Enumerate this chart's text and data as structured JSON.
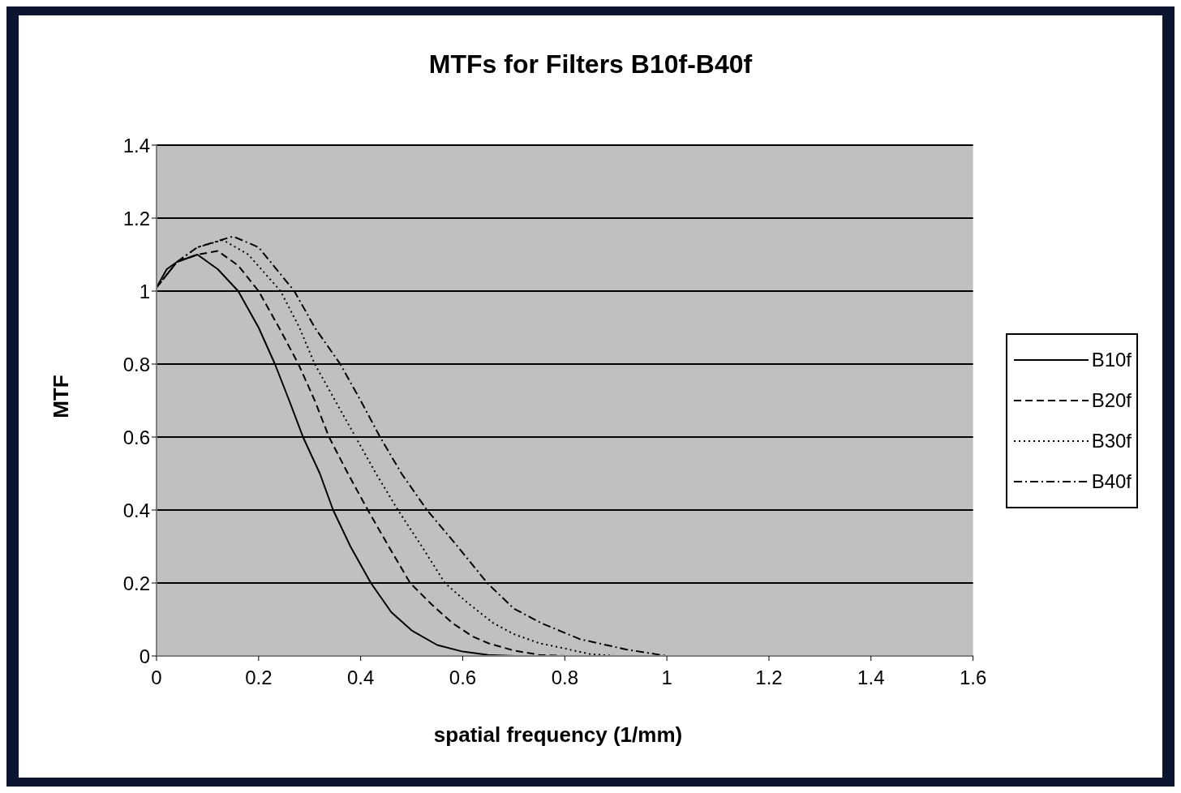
{
  "chart_data": {
    "type": "line",
    "title": "MTFs for Filters B10f-B40f",
    "xlabel": "spatial frequency (1/mm)",
    "ylabel": "MTF",
    "xlim": [
      0,
      1.6
    ],
    "xticks": [
      0,
      0.2,
      0.4,
      0.6,
      0.8,
      1,
      1.2,
      1.4,
      1.6
    ],
    "ylim": [
      0,
      1.4
    ],
    "yticks": [
      0,
      0.2,
      0.4,
      0.6,
      0.8,
      1,
      1.2,
      1.4
    ],
    "grid": "y",
    "legend": "right",
    "marker": "none",
    "series": [
      {
        "name": "B10f",
        "color": "#000000",
        "line_style": "solid",
        "x": [
          0,
          0.02,
          0.04,
          0.06,
          0.08,
          0.1,
          0.12,
          0.14,
          0.16,
          0.18,
          0.2,
          0.232,
          0.26,
          0.287,
          0.32,
          0.346,
          0.38,
          0.42,
          0.46,
          0.5,
          0.55,
          0.6,
          0.65,
          0.7
        ],
        "values": [
          1.01,
          1.06,
          1.08,
          1.09,
          1.1,
          1.08,
          1.06,
          1.03,
          1.0,
          0.95,
          0.9,
          0.8,
          0.7,
          0.6,
          0.5,
          0.4,
          0.3,
          0.2,
          0.12,
          0.07,
          0.03,
          0.012,
          0.003,
          0
        ]
      },
      {
        "name": "B20f",
        "color": "#000000",
        "line_style": "dashed",
        "x": [
          0,
          0.04,
          0.08,
          0.12,
          0.16,
          0.2,
          0.24,
          0.278,
          0.31,
          0.338,
          0.375,
          0.414,
          0.455,
          0.497,
          0.54,
          0.58,
          0.62,
          0.65,
          0.7,
          0.75,
          0.8
        ],
        "values": [
          1.01,
          1.08,
          1.1,
          1.11,
          1.07,
          1.0,
          0.9,
          0.8,
          0.7,
          0.6,
          0.5,
          0.4,
          0.3,
          0.2,
          0.14,
          0.09,
          0.053,
          0.035,
          0.015,
          0.003,
          0
        ]
      },
      {
        "name": "B30f",
        "color": "#000000",
        "line_style": "dotted",
        "x": [
          0,
          0.04,
          0.08,
          0.13,
          0.18,
          0.243,
          0.28,
          0.31,
          0.35,
          0.39,
          0.43,
          0.473,
          0.52,
          0.565,
          0.61,
          0.66,
          0.7,
          0.75,
          0.795,
          0.85,
          0.9
        ],
        "values": [
          1.01,
          1.08,
          1.12,
          1.14,
          1.1,
          1.0,
          0.9,
          0.8,
          0.7,
          0.6,
          0.5,
          0.4,
          0.3,
          0.2,
          0.145,
          0.09,
          0.06,
          0.035,
          0.022,
          0.005,
          0
        ]
      },
      {
        "name": "B40f",
        "color": "#000000",
        "line_style": "dashdot",
        "x": [
          0,
          0.04,
          0.08,
          0.15,
          0.2,
          0.27,
          0.31,
          0.36,
          0.4,
          0.438,
          0.48,
          0.53,
          0.59,
          0.648,
          0.7,
          0.754,
          0.83,
          0.92,
          1.0
        ],
        "values": [
          1.01,
          1.08,
          1.12,
          1.15,
          1.12,
          1.0,
          0.9,
          0.8,
          0.7,
          0.6,
          0.5,
          0.4,
          0.3,
          0.2,
          0.13,
          0.09,
          0.046,
          0.018,
          0
        ]
      }
    ]
  }
}
